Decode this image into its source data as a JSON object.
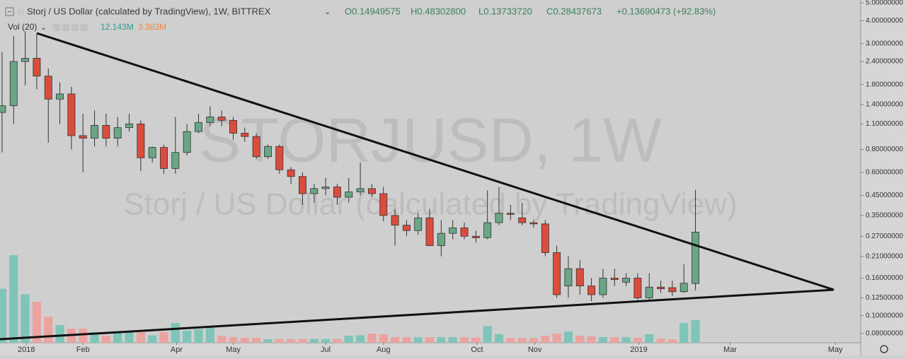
{
  "chart_data": {
    "type": "candlestick",
    "title": "Storj / US Dollar (calculated by TradingView), 1W, BITTREX",
    "legend_values": [
      "O0.14949575",
      "H0.48302800",
      "L0.13733720",
      "C0.28437673",
      "+0.13690473 (+92.83%)"
    ],
    "volume_title": "Vol (20)",
    "volume_values": [
      "12.143M",
      "3.383M"
    ],
    "watermark": "STORJUSD, 1W",
    "watermark_subtitle": "Storj / US Dollar (calculated by TradingView)",
    "log_scale": true,
    "up_color": "#6aa585",
    "down_color": "#da4c3b",
    "volume_up_color": "#7ec4b8",
    "volume_down_color": "#eba3a0",
    "x": [
      0,
      1,
      2,
      3,
      4,
      5,
      6,
      7,
      8,
      9,
      10,
      11,
      12,
      13,
      14,
      15,
      16,
      17,
      18,
      19,
      20,
      21,
      22,
      23,
      24,
      25,
      26,
      27,
      28,
      29,
      30,
      31,
      32,
      33,
      34,
      35,
      36,
      37,
      38,
      39,
      40,
      41,
      42,
      43,
      44,
      45,
      46,
      47,
      48,
      49,
      50,
      51,
      52,
      53,
      54,
      55,
      56,
      57,
      58,
      59,
      60
    ],
    "open": [
      1.27,
      1.38,
      2.4,
      2.5,
      2.0,
      1.5,
      1.6,
      0.95,
      0.92,
      1.08,
      0.92,
      1.05,
      1.1,
      0.72,
      0.82,
      0.63,
      0.77,
      1.0,
      1.12,
      1.2,
      1.15,
      0.98,
      0.94,
      0.73,
      0.83,
      0.62,
      0.57,
      0.46,
      0.49,
      0.5,
      0.44,
      0.47,
      0.49,
      0.46,
      0.35,
      0.31,
      0.29,
      0.34,
      0.24,
      0.28,
      0.3,
      0.27,
      0.265,
      0.32,
      0.36,
      0.34,
      0.32,
      0.315,
      0.22,
      0.145,
      0.18,
      0.145,
      0.13,
      0.16,
      0.152,
      0.16,
      0.125,
      0.143,
      0.142,
      0.135,
      0.14949575
    ],
    "high": [
      2.7,
      3.3,
      3.5,
      3.4,
      2.2,
      1.85,
      1.75,
      1.25,
      1.3,
      1.25,
      1.2,
      1.25,
      1.15,
      0.83,
      0.85,
      1.2,
      1.1,
      1.25,
      1.37,
      1.3,
      1.2,
      1.05,
      0.98,
      0.85,
      0.85,
      0.64,
      0.6,
      0.52,
      0.56,
      0.52,
      0.56,
      0.68,
      0.52,
      0.5,
      0.38,
      0.33,
      0.36,
      0.38,
      0.33,
      0.33,
      0.32,
      0.29,
      0.48,
      0.5,
      0.4,
      0.41,
      0.33,
      0.33,
      0.24,
      0.21,
      0.2,
      0.16,
      0.18,
      0.18,
      0.17,
      0.17,
      0.17,
      0.155,
      0.155,
      0.19,
      0.483028
    ],
    "low": [
      0.77,
      1.1,
      1.78,
      1.7,
      0.87,
      1.1,
      0.8,
      0.6,
      0.83,
      0.83,
      0.83,
      1.0,
      0.61,
      0.68,
      0.59,
      0.59,
      0.74,
      0.98,
      1.07,
      1.07,
      0.9,
      0.88,
      0.71,
      0.71,
      0.59,
      0.52,
      0.4,
      0.41,
      0.45,
      0.4,
      0.41,
      0.45,
      0.44,
      0.325,
      0.24,
      0.27,
      0.275,
      0.24,
      0.21,
      0.26,
      0.26,
      0.25,
      0.26,
      0.31,
      0.33,
      0.31,
      0.3,
      0.21,
      0.125,
      0.125,
      0.13,
      0.12,
      0.125,
      0.145,
      0.145,
      0.122,
      0.122,
      0.133,
      0.128,
      0.133,
      0.1373372
    ],
    "close": [
      1.38,
      2.4,
      2.5,
      2.0,
      1.5,
      1.6,
      0.95,
      0.92,
      1.08,
      0.92,
      1.05,
      1.1,
      0.72,
      0.82,
      0.63,
      0.77,
      1.0,
      1.12,
      1.2,
      1.15,
      0.98,
      0.94,
      0.73,
      0.83,
      0.62,
      0.57,
      0.46,
      0.49,
      0.5,
      0.44,
      0.47,
      0.49,
      0.46,
      0.35,
      0.31,
      0.29,
      0.34,
      0.24,
      0.28,
      0.3,
      0.27,
      0.265,
      0.32,
      0.36,
      0.355,
      0.32,
      0.315,
      0.22,
      0.13,
      0.18,
      0.145,
      0.13,
      0.16,
      0.157,
      0.16,
      0.125,
      0.143,
      0.14,
      0.135,
      0.15,
      0.28437673
    ],
    "volume": [
      29,
      47,
      26,
      22,
      14,
      9.5,
      7.6,
      7.6,
      5.7,
      3.8,
      5.7,
      6.5,
      5.7,
      4,
      5.7,
      10.6,
      6.5,
      7.2,
      8.7,
      3.8,
      3,
      2.7,
      2.7,
      1.9,
      2,
      2,
      2,
      2,
      2,
      2,
      3.8,
      4,
      4.9,
      4.6,
      3,
      3,
      3,
      3,
      3,
      3,
      3,
      2.7,
      9,
      4.6,
      2.5,
      2.5,
      2.5,
      3.8,
      4.9,
      6,
      3.8,
      3.4,
      3,
      3,
      3,
      2.7,
      4.6,
      2.3,
      1.9,
      10.6,
      12.143
    ],
    "vlim": [
      0,
      184
    ],
    "xlim": [
      -0.18,
      74.3
    ],
    "xticks": [
      {
        "value": 2.1,
        "label": "2018"
      },
      {
        "value": 7.0,
        "label": "Feb"
      },
      {
        "value": 15.1,
        "label": "Apr"
      },
      {
        "value": 20.0,
        "label": "May"
      },
      {
        "value": 28.0,
        "label": "Jul"
      },
      {
        "value": 33.0,
        "label": "Aug"
      },
      {
        "value": 41.1,
        "label": "Oct"
      },
      {
        "value": 46.1,
        "label": "Nov"
      },
      {
        "value": 55.1,
        "label": "2019"
      },
      {
        "value": 63.0,
        "label": "Mar"
      },
      {
        "value": 72.1,
        "label": "May"
      }
    ],
    "ylim": [
      0.0713,
      5.18
    ],
    "yticks": [
      {
        "value": 5,
        "label": "5.00000000"
      },
      {
        "value": 4,
        "label": "4.00000000"
      },
      {
        "value": 3,
        "label": "3.00000000"
      },
      {
        "value": 2.4,
        "label": "2.40000000"
      },
      {
        "value": 1.8,
        "label": "1.80000000"
      },
      {
        "value": 1.4,
        "label": "1.40000000"
      },
      {
        "value": 1.1,
        "label": "1.10000000"
      },
      {
        "value": 0.8,
        "label": "0.80000000"
      },
      {
        "value": 0.6,
        "label": "0.60000000"
      },
      {
        "value": 0.45,
        "label": "0.45000000"
      },
      {
        "value": 0.35,
        "label": "0.35000000"
      },
      {
        "value": 0.27,
        "label": "0.27000000"
      },
      {
        "value": 0.21,
        "label": "0.21000000"
      },
      {
        "value": 0.16,
        "label": "0.16000000"
      },
      {
        "value": 0.125,
        "label": "0.12500000"
      },
      {
        "value": 0.1,
        "label": "0.10000000"
      },
      {
        "value": 0.08,
        "label": "0.08000000"
      }
    ]
  }
}
